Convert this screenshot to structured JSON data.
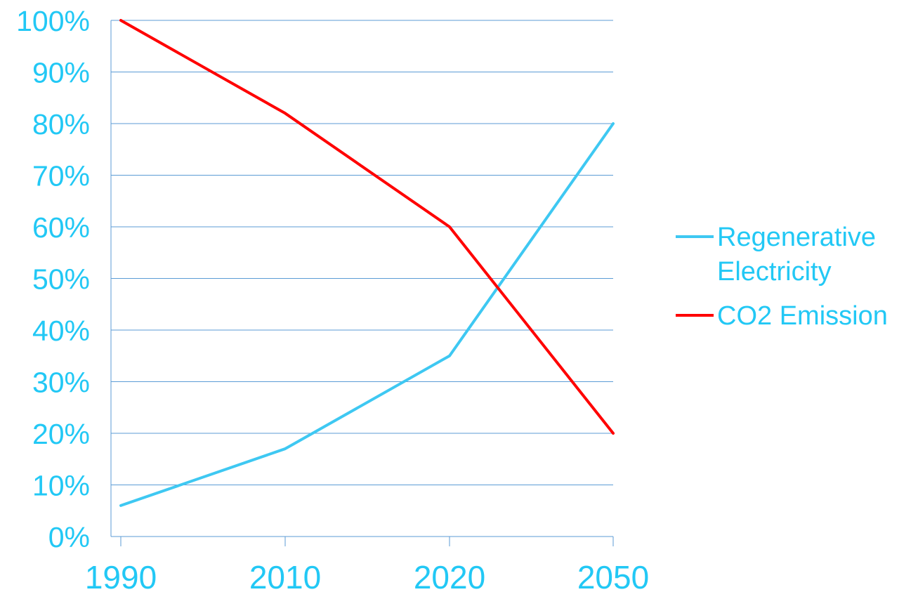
{
  "chart_data": {
    "type": "line",
    "categories": [
      "1990",
      "2010",
      "2020",
      "2050"
    ],
    "series": [
      {
        "name": "Regenerative Electricity",
        "legend_lines": [
          "Regenerative",
          "Electricity"
        ],
        "values": [
          6,
          17,
          35,
          80
        ],
        "color": "#3ec8f2"
      },
      {
        "name": "CO2 Emission",
        "legend_lines": [
          "CO2 Emission"
        ],
        "values": [
          100,
          82,
          60,
          20
        ],
        "color": "#ff0000"
      }
    ],
    "ylim": [
      0,
      100
    ],
    "yticks": [
      "0%",
      "10%",
      "20%",
      "30%",
      "40%",
      "50%",
      "60%",
      "70%",
      "80%",
      "90%",
      "100%"
    ],
    "grid": true,
    "legend_position": "right",
    "axis_text_color": "#22c8f5",
    "grid_color": "#5b9bd5"
  }
}
